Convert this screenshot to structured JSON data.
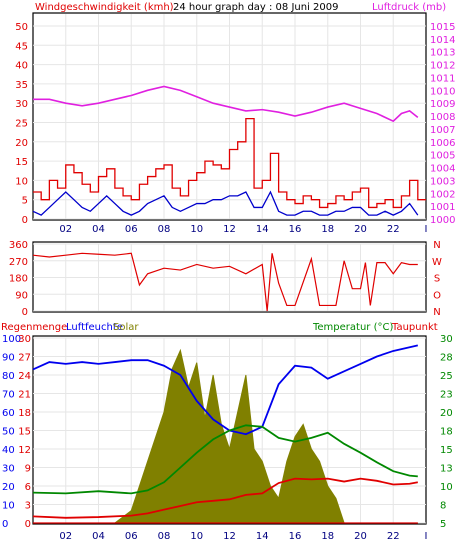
{
  "top_panel": {
    "title": "24 hour graph day : 08 Juni 2009",
    "left_label": "Windgeschwindigkeit (kmh)",
    "right_label": "Luftdruck (mb)"
  },
  "bottom_panel": {
    "label_regen": "Regenmenge",
    "label_feuchte": "Luftfeuchte",
    "label_solar": "Solar",
    "label_temp": "Temperatur (°C)",
    "label_taupunkt": "Taupunkt"
  },
  "colors": {
    "frame": "#000000",
    "grid": "#e6e6e6",
    "wind": "#e00000",
    "gust": "#e00000",
    "avg_wind": "#0000cc",
    "pressure": "#e020e0",
    "direction": "#e00000",
    "humidity": "#0000ee",
    "solar": "#808000",
    "temperature": "#008800",
    "dewpoint": "#e00000",
    "rain_axis": "#e00000",
    "humidity_axis": "#0000ee",
    "temp_axis": "#008800"
  },
  "chart_data": [
    {
      "type": "line",
      "x_ticks": [
        "02",
        "04",
        "06",
        "08",
        "10",
        "12",
        "14",
        "16",
        "18",
        "20",
        "22",
        "I"
      ],
      "y_left": {
        "label": "Windgeschwindigkeit (kmh)",
        "ticks": [
          "0",
          "5",
          "10",
          "15",
          "20",
          "25",
          "30",
          "35",
          "40",
          "45",
          "50"
        ],
        "range": [
          0,
          50
        ]
      },
      "y_right": {
        "label": "Luftdruck (mb)",
        "ticks": [
          "1000",
          "1001",
          "1002",
          "1003",
          "1004",
          "1005",
          "1006",
          "1007",
          "1008",
          "1009",
          "1010",
          "1011",
          "1012",
          "1013",
          "1014",
          "1015"
        ],
        "range": [
          1000,
          1015
        ]
      },
      "series": [
        {
          "key": "gust",
          "x": [
            0,
            0.5,
            1,
            1.5,
            2,
            2.5,
            3,
            3.5,
            4,
            4.5,
            5,
            5.5,
            6,
            6.5,
            7,
            7.5,
            8,
            8.5,
            9,
            9.5,
            10,
            10.5,
            11,
            11.5,
            12,
            12.5,
            13,
            13.5,
            14,
            14.5,
            15,
            15.5,
            16,
            16.5,
            17,
            17.5,
            18,
            18.5,
            19,
            19.5,
            20,
            20.5,
            21,
            21.5,
            22,
            22.5,
            23,
            23.5
          ],
          "y": [
            7,
            5,
            10,
            8,
            14,
            12,
            9,
            7,
            11,
            13,
            8,
            6,
            5,
            9,
            11,
            13,
            14,
            8,
            6,
            10,
            12,
            15,
            14,
            13,
            18,
            20,
            26,
            8,
            10,
            17,
            7,
            5,
            4,
            6,
            5,
            3,
            4,
            6,
            5,
            7,
            8,
            3,
            4,
            5,
            3,
            6,
            10,
            5
          ]
        },
        {
          "key": "avg_wind",
          "x": [
            0,
            0.5,
            1,
            1.5,
            2,
            2.5,
            3,
            3.5,
            4,
            4.5,
            5,
            5.5,
            6,
            6.5,
            7,
            7.5,
            8,
            8.5,
            9,
            9.5,
            10,
            10.5,
            11,
            11.5,
            12,
            12.5,
            13,
            13.5,
            14,
            14.5,
            15,
            15.5,
            16,
            16.5,
            17,
            17.5,
            18,
            18.5,
            19,
            19.5,
            20,
            20.5,
            21,
            21.5,
            22,
            22.5,
            23,
            23.5
          ],
          "y": [
            2,
            1,
            3,
            5,
            7,
            5,
            3,
            2,
            4,
            6,
            4,
            2,
            1,
            2,
            4,
            5,
            6,
            3,
            2,
            3,
            4,
            4,
            5,
            5,
            6,
            6,
            7,
            3,
            3,
            7,
            2,
            1,
            1,
            2,
            2,
            1,
            1,
            2,
            2,
            3,
            3,
            1,
            1,
            2,
            1,
            2,
            4,
            1
          ]
        },
        {
          "key": "pressure",
          "x": [
            0,
            1,
            2,
            3,
            4,
            5,
            6,
            7,
            8,
            9,
            10,
            11,
            12,
            13,
            14,
            15,
            16,
            17,
            18,
            19,
            20,
            21,
            22,
            22.5,
            23,
            23.5
          ],
          "y": [
            1009.3,
            1009.3,
            1009.0,
            1008.8,
            1009.0,
            1009.3,
            1009.6,
            1010.0,
            1010.3,
            1010.0,
            1009.5,
            1009.0,
            1008.7,
            1008.4,
            1008.5,
            1008.3,
            1008.0,
            1008.3,
            1008.7,
            1009.0,
            1008.6,
            1008.2,
            1007.6,
            1008.2,
            1008.4,
            1007.9
          ]
        }
      ]
    },
    {
      "type": "line",
      "x_ticks": [],
      "y_left": {
        "label": "",
        "ticks": [
          "360",
          "270",
          "180",
          "90",
          "0"
        ],
        "range": [
          0,
          360
        ]
      },
      "y_right": {
        "label": "",
        "ticks": [
          "N",
          "W",
          "S",
          "O",
          "N"
        ]
      },
      "series": [
        {
          "key": "direction",
          "x": [
            0,
            1,
            2,
            3,
            4,
            5,
            6,
            6.5,
            7,
            8,
            9,
            10,
            11,
            12,
            13,
            14,
            14.3,
            14.6,
            15,
            15.5,
            16,
            17,
            17.5,
            18,
            18.5,
            19,
            19.5,
            20,
            20.3,
            20.6,
            21,
            21.5,
            22,
            22.5,
            23,
            23.5
          ],
          "y": [
            300,
            290,
            300,
            310,
            305,
            300,
            310,
            140,
            200,
            230,
            220,
            250,
            230,
            240,
            200,
            250,
            0,
            310,
            150,
            30,
            30,
            280,
            30,
            30,
            30,
            270,
            120,
            120,
            260,
            30,
            260,
            260,
            200,
            260,
            250,
            250
          ]
        }
      ]
    },
    {
      "type": "area",
      "x_ticks": [
        "02",
        "04",
        "06",
        "08",
        "10",
        "12",
        "14",
        "16",
        "18",
        "20",
        "22",
        "I"
      ],
      "y_left_rain": {
        "label": "Regenmenge",
        "ticks": [
          "0",
          "3",
          "6",
          "9",
          "12",
          "15",
          "18",
          "21",
          "24",
          "27",
          "30"
        ],
        "range": [
          0,
          30
        ]
      },
      "y_left_humidity": {
        "label": "Luftfeuchte",
        "ticks": [
          "0",
          "10",
          "20",
          "30",
          "40",
          "50",
          "60",
          "70",
          "80",
          "90",
          "100"
        ],
        "range": [
          0,
          100
        ]
      },
      "y_right_temp": {
        "label": "Temperatur (°C)",
        "ticks": [
          "5",
          "8",
          "10",
          "13",
          "15",
          "18",
          "20",
          "23",
          "25",
          "28",
          "30"
        ],
        "range": [
          5,
          30
        ]
      },
      "series": [
        {
          "key": "solar",
          "name": "Solar",
          "x": [
            0,
            5,
            6,
            6.5,
            7,
            7.5,
            8,
            8.5,
            9,
            9.5,
            10,
            10.5,
            11,
            11.5,
            12,
            12.5,
            13,
            13.5,
            14,
            14.5,
            15,
            15.5,
            16,
            16.5,
            17,
            17.5,
            18,
            18.5,
            19,
            20,
            21,
            22,
            23,
            23.5
          ],
          "y": [
            0,
            0,
            2,
            6,
            10,
            14,
            18,
            25,
            28,
            22,
            26,
            17,
            24,
            16,
            12,
            18,
            24,
            12,
            10,
            6,
            4,
            10,
            14,
            16,
            12,
            10,
            6,
            4,
            0,
            0,
            0,
            0,
            0,
            0
          ]
        },
        {
          "key": "humidity",
          "name": "Luftfeuchte",
          "x": [
            0,
            1,
            2,
            3,
            4,
            5,
            6,
            7,
            8,
            9,
            10,
            11,
            12,
            13,
            14,
            15,
            16,
            17,
            18,
            19,
            20,
            21,
            22,
            23,
            23.5
          ],
          "y": [
            83,
            87,
            86,
            87,
            86,
            87,
            88,
            88,
            85,
            80,
            66,
            56,
            50,
            48,
            52,
            75,
            85,
            84,
            78,
            82,
            86,
            90,
            93,
            95,
            96
          ]
        },
        {
          "key": "temperature",
          "name": "Temperatur (°C)",
          "x": [
            0,
            2,
            4,
            6,
            7,
            8,
            9,
            10,
            11,
            12,
            13,
            14,
            15,
            16,
            17,
            18,
            19,
            20,
            21,
            22,
            23,
            23.5
          ],
          "y": [
            9.1,
            9.0,
            9.3,
            9.0,
            9.4,
            10.5,
            12.5,
            14.5,
            16.3,
            17.5,
            18.2,
            18.0,
            16.5,
            16.0,
            16.5,
            17.2,
            15.7,
            14.5,
            13.2,
            12.0,
            11.4,
            11.3
          ]
        },
        {
          "key": "dewpoint",
          "name": "Taupunkt",
          "x": [
            0,
            2,
            4,
            6,
            7,
            8,
            9,
            10,
            11,
            12,
            13,
            14,
            15,
            16,
            17,
            18,
            19,
            20,
            21,
            22,
            23,
            23.5
          ],
          "y": [
            5.9,
            5.7,
            5.8,
            6.0,
            6.3,
            6.8,
            7.3,
            7.8,
            8.0,
            8.2,
            8.8,
            9.0,
            10.4,
            11.0,
            10.9,
            11.0,
            10.6,
            11.0,
            10.7,
            10.2,
            10.3,
            10.5
          ]
        },
        {
          "key": "rain",
          "name": "Regenmenge",
          "x": [
            0,
            23.5
          ],
          "y": [
            0,
            0
          ]
        }
      ]
    }
  ]
}
